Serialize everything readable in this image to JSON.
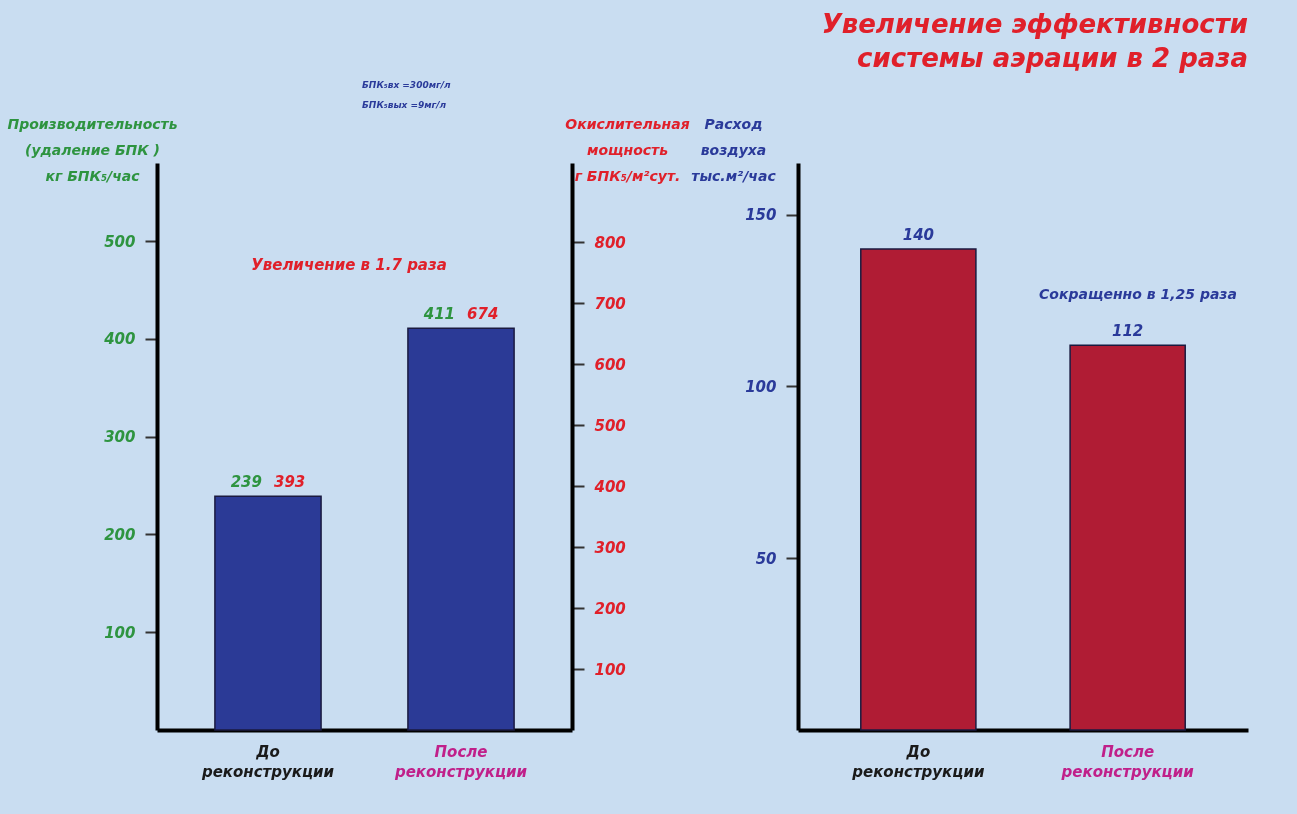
{
  "chart_data": [
    {
      "type": "bar",
      "categories": [
        "До реконструкции",
        "После реконструкции"
      ],
      "ylabel": "Производительность\n(удаление БПК )\nкг БПК₅/час",
      "y2label": "Окислительная\nмощность\nг БПК₅/м²сут.",
      "series": [
        {
          "color": "#2b3a96",
          "values": [
            239,
            411
          ],
          "value_labels": [
            "239",
            "411"
          ]
        }
      ],
      "ylim": [
        0,
        580
      ],
      "yticks": [
        100,
        200,
        300,
        400,
        500
      ],
      "y2lim": [
        0,
        930
      ],
      "y2ticks": [
        100,
        200,
        300,
        400,
        500,
        600,
        700,
        800
      ],
      "annotations": [
        "БПК₅вх =300мг/л",
        "БПК₅вых =9мг/л",
        "Увеличение в 1.7 раза",
        {
          "text": "393",
          "x": "До реконструкции",
          "y": 239
        },
        {
          "text": "674",
          "x": "После реконструкции",
          "y": 411
        }
      ]
    },
    {
      "type": "bar",
      "title": "Увеличение эффективности\nсистемы аэрации в 2 раза",
      "categories": [
        "До реконструкции",
        "После реконструкции"
      ],
      "ylabel": "Расход\nвоздуха\nтыс.м²/час",
      "series": [
        {
          "color": "#b01c34",
          "values": [
            140,
            112
          ],
          "value_labels": [
            "140",
            "112"
          ]
        }
      ],
      "ylim": [
        0,
        165
      ],
      "yticks": [
        50,
        100,
        150
      ],
      "annotations": [
        "Сокращенно в 1,25 раза"
      ]
    }
  ]
}
